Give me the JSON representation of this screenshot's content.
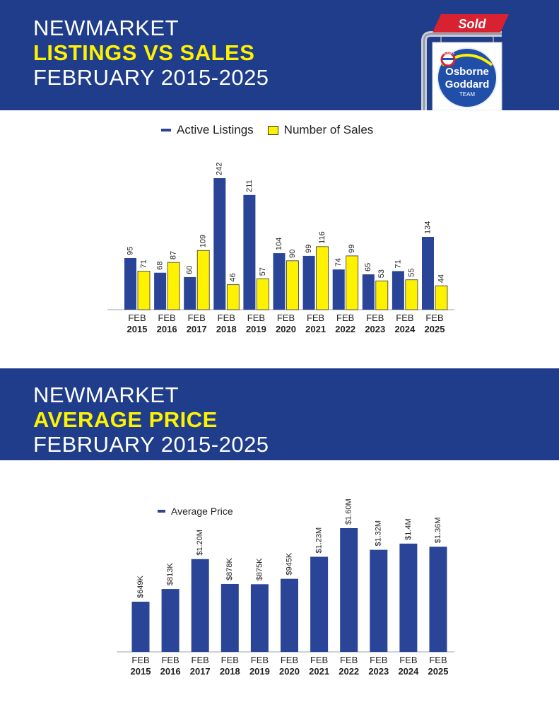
{
  "section1": {
    "line1": "NEWMARKET",
    "line2": "LISTINGS VS SALES",
    "line3": "FEBRUARY 2015-2025"
  },
  "section2": {
    "line1": "NEWMARKET",
    "line2": "AVERAGE PRICE",
    "line3": "FEBRUARY 2015-2025"
  },
  "logo": {
    "sign": "Sold",
    "brand": "RE/MAX",
    "name_line1": "Osborne",
    "name_line2": "Goddard",
    "name_line3": "TEAM"
  },
  "colors": {
    "navy": "#1f3d8a",
    "bar_blue": "#2a4597",
    "bar_yellow": "#fff200",
    "sign_red": "#d92231"
  },
  "icons": [
    "sold-sign-icon",
    "remax-balloon-icon"
  ],
  "chart_data": [
    {
      "type": "bar",
      "categories": [
        "FEB 2015",
        "FEB 2016",
        "FEB 2017",
        "FEB 2018",
        "FEB 2019",
        "FEB 2020",
        "FEB 2021",
        "FEB 2022",
        "FEB 2023",
        "FEB 2024",
        "FEB 2025"
      ],
      "series": [
        {
          "name": "Active Listings",
          "values": [
            95,
            68,
            60,
            242,
            211,
            104,
            99,
            74,
            65,
            71,
            134
          ],
          "labels": [
            "95",
            "68",
            "60",
            "242",
            "211",
            "104",
            "99",
            "74",
            "65",
            "71",
            "134"
          ]
        },
        {
          "name": "Number of Sales",
          "values": [
            71,
            87,
            109,
            46,
            57,
            90,
            116,
            99,
            53,
            55,
            44
          ],
          "labels": [
            "71",
            "87",
            "109",
            "46",
            "57",
            "90",
            "116",
            "99",
            "53",
            "55",
            "44"
          ]
        }
      ],
      "legend": "top-center",
      "grid": false
    },
    {
      "type": "bar",
      "categories": [
        "FEB 2015",
        "FEB 2016",
        "FEB 2017",
        "FEB 2018",
        "FEB 2019",
        "FEB 2020",
        "FEB 2021",
        "FEB 2022",
        "FEB 2023",
        "FEB 2024",
        "FEB 2025"
      ],
      "series": [
        {
          "name": "Average Price",
          "values": [
            649000,
            813000,
            1200000,
            878000,
            875000,
            945000,
            1230000,
            1600000,
            1320000,
            1400000,
            1360000
          ],
          "labels": [
            "$649K",
            "$813K",
            "$1.20M",
            "$878K",
            "$875K",
            "$945K",
            "$1.23M",
            "$1.60M",
            "$1.32M",
            "$1.4M",
            "$1.36M"
          ]
        }
      ],
      "legend": "top-left",
      "grid": false
    }
  ]
}
